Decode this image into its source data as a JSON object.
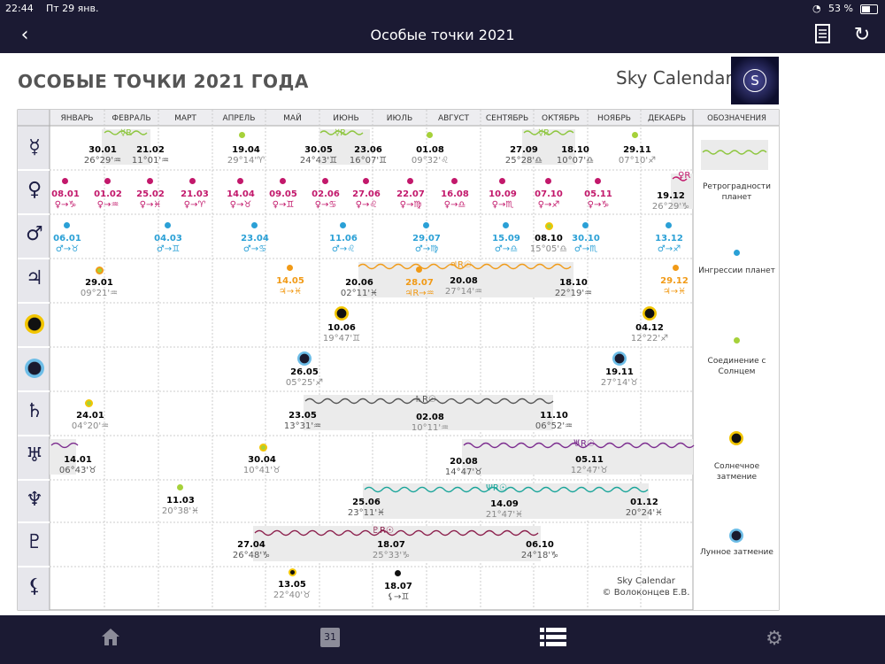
{
  "status": {
    "time": "22:44",
    "date": "Пт 29 янв.",
    "battery": "53 %"
  },
  "nav": {
    "title": "Особые точки 2021",
    "back_icon": "chevron-left-icon",
    "doc_icon": "document-icon",
    "refresh_icon": "refresh-icon"
  },
  "page": {
    "heading": "ОСОБЫЕ ТОЧКИ  2021 ГОДА",
    "brand": "Sky Calendar",
    "logo_letter": "S"
  },
  "months": [
    "ЯНВАРЬ",
    "ФЕВРАЛЬ",
    "МАРТ",
    "АПРЕЛЬ",
    "МАЙ",
    "ИЮНЬ",
    "ИЮЛЬ",
    "АВГУСТ",
    "СЕНТЯБРЬ",
    "ОКТЯБРЬ",
    "НОЯБРЬ",
    "ДЕКАБРЬ"
  ],
  "legend_title": "ОБОЗНАЧЕНИЯ",
  "planets": [
    "☿",
    "♀",
    "♂",
    "♃",
    "sun",
    "moon",
    "♄",
    "♅",
    "♆",
    "♇",
    "⚸"
  ],
  "retro_labels": {
    "mercury1": "☿R",
    "mercury2": "☿R",
    "mercury3": "☿R",
    "venus": "♀R",
    "jupiter": "♃R☉",
    "saturn": "♄R☉",
    "uranus": "♅R☉",
    "neptune": "ΨR☉",
    "pluto": "♇R☉"
  },
  "rows": {
    "mercury": [
      {
        "d": "30.01",
        "s": "26°29'♒"
      },
      {
        "d": "21.02",
        "s": "11°01'♒"
      },
      {
        "d": "19.04",
        "s": "29°14'♈"
      },
      {
        "d": "30.05",
        "s": "24°43'♊"
      },
      {
        "d": "23.06",
        "s": "16°07'♊"
      },
      {
        "d": "01.08",
        "s": "09°32'♌"
      },
      {
        "d": "27.09",
        "s": "25°28'♎"
      },
      {
        "d": "18.10",
        "s": "10°07'♎"
      },
      {
        "d": "29.11",
        "s": "07°10'♐"
      }
    ],
    "venus": [
      {
        "d": "08.01",
        "s": "♀→♑"
      },
      {
        "d": "01.02",
        "s": "♀→♒"
      },
      {
        "d": "25.02",
        "s": "♀→♓"
      },
      {
        "d": "21.03",
        "s": "♀→♈"
      },
      {
        "d": "14.04",
        "s": "♀→♉"
      },
      {
        "d": "09.05",
        "s": "♀→♊"
      },
      {
        "d": "02.06",
        "s": "♀→♋"
      },
      {
        "d": "27.06",
        "s": "♀→♌"
      },
      {
        "d": "22.07",
        "s": "♀→♍"
      },
      {
        "d": "16.08",
        "s": "♀→♎"
      },
      {
        "d": "10.09",
        "s": "♀→♏"
      },
      {
        "d": "07.10",
        "s": "♀→♐"
      },
      {
        "d": "05.11",
        "s": "♀→♑"
      },
      {
        "d": "19.12",
        "s": "26°29'♑"
      }
    ],
    "mars": [
      {
        "d": "06.01",
        "s": "♂→♉"
      },
      {
        "d": "04.03",
        "s": "♂→♊"
      },
      {
        "d": "23.04",
        "s": "♂→♋"
      },
      {
        "d": "11.06",
        "s": "♂→♌"
      },
      {
        "d": "29.07",
        "s": "♂→♍"
      },
      {
        "d": "15.09",
        "s": "♂→♎"
      },
      {
        "d": "08.10",
        "s": "15°05'♎"
      },
      {
        "d": "30.10",
        "s": "♂→♏"
      },
      {
        "d": "13.12",
        "s": "♂→♐"
      }
    ],
    "jupiter": [
      {
        "d": "29.01",
        "s": "09°21'♒"
      },
      {
        "d": "14.05",
        "s": "♃→♓"
      },
      {
        "d": "20.06",
        "s": "02°11'♓"
      },
      {
        "d": "28.07",
        "s": "♃R→♒"
      },
      {
        "d": "20.08",
        "s": "27°14'♒"
      },
      {
        "d": "18.10",
        "s": "22°19'♒"
      },
      {
        "d": "29.12",
        "s": "♃→♓"
      }
    ],
    "solar": [
      {
        "d": "10.06",
        "s": "19°47'♊"
      },
      {
        "d": "04.12",
        "s": "12°22'♐"
      }
    ],
    "lunar": [
      {
        "d": "26.05",
        "s": "05°25'♐"
      },
      {
        "d": "19.11",
        "s": "27°14'♉"
      }
    ],
    "saturn": [
      {
        "d": "24.01",
        "s": "04°20'♒"
      },
      {
        "d": "23.05",
        "s": "13°31'♒"
      },
      {
        "d": "02.08",
        "s": "10°11'♒"
      },
      {
        "d": "11.10",
        "s": "06°52'♒"
      }
    ],
    "uranus": [
      {
        "d": "14.01",
        "s": "06°43'♉"
      },
      {
        "d": "30.04",
        "s": "10°41'♉"
      },
      {
        "d": "20.08",
        "s": "14°47'♉"
      },
      {
        "d": "05.11",
        "s": "12°47'♉"
      }
    ],
    "neptune": [
      {
        "d": "11.03",
        "s": "20°38'♓"
      },
      {
        "d": "25.06",
        "s": "23°11'♓"
      },
      {
        "d": "14.09",
        "s": "21°47'♓"
      },
      {
        "d": "01.12",
        "s": "20°24'♓"
      }
    ],
    "pluto": [
      {
        "d": "27.04",
        "s": "26°48'♑"
      },
      {
        "d": "18.07",
        "s": "25°33'♑"
      },
      {
        "d": "06.10",
        "s": "24°18'♑"
      }
    ],
    "lilith": [
      {
        "d": "13.05",
        "s": "22°40'♉"
      },
      {
        "d": "18.07",
        "s": "⚸→♊"
      }
    ]
  },
  "legend": {
    "retro": "Ретроградности планет",
    "ingress": "Ингрессии планет",
    "conj": "Соединение с Солнцем",
    "solar": "Солнечное затмение",
    "lunar": "Лунное затмение"
  },
  "credit": {
    "line1": "Sky Calendar",
    "line2": "© Волоконцев Е.В."
  },
  "tabs": {
    "home_icon": "home-icon",
    "calendar_day": "31",
    "list_icon": "list-icon",
    "settings_icon": "gear-icon"
  }
}
